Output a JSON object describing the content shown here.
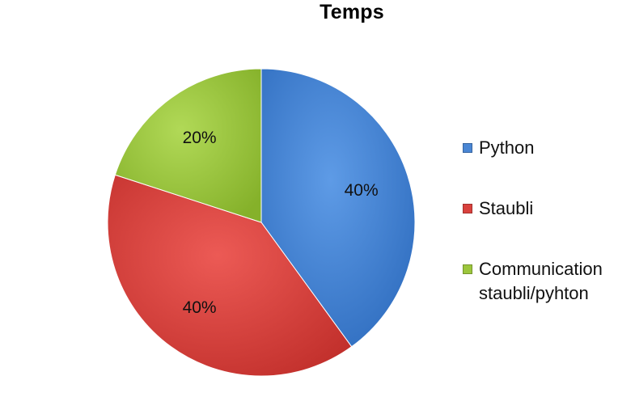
{
  "chart_data": {
    "type": "pie",
    "title": "Temps",
    "categories": [
      "Python",
      "Staubli",
      "Communication staubli/pyhton"
    ],
    "values": [
      40,
      40,
      20
    ],
    "data_labels": [
      "40%",
      "40%",
      "20%"
    ],
    "colors": [
      "#4a86d4",
      "#d9413d",
      "#9cc63c"
    ],
    "legend_position": "right",
    "start_angle_deg": 0,
    "direction": "clockwise"
  }
}
